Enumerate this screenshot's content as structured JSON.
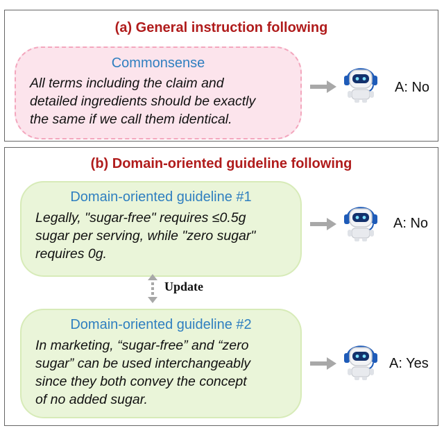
{
  "panel_a": {
    "title": "(a) General instruction following",
    "bubble": {
      "title": "Commonsense",
      "lines": [
        "All terms including the claim and",
        "detailed ingredients should be exactly",
        "the same if we call them identical."
      ]
    },
    "answer": "A: No"
  },
  "panel_b": {
    "title": "(b) Domain-oriented guideline following",
    "guideline_1": {
      "title": "Domain-oriented guideline #1",
      "lines": [
        "Legally, \"sugar-free\" requires ≤0.5g",
        "sugar per serving, while \"zero sugar\"",
        "requires 0g."
      ],
      "answer": "A: No"
    },
    "update_label": "Update",
    "guideline_2": {
      "title": "Domain-oriented guideline #2",
      "lines": [
        "In marketing, “sugar-free” and “zero",
        "sugar” can be used interchangeably",
        "since they both convey the concept",
        "of no added sugar."
      ],
      "answer": "A: Yes"
    }
  },
  "colors": {
    "title_red": "#b01c1c",
    "bubble_title_blue": "#2f7fc0",
    "pink_fill": "#fce4ec",
    "pink_border": "#f3a6bd",
    "green_fill": "#eaf5d9",
    "green_border": "#d7ebb8",
    "arrow_gray": "#a8a8a8",
    "robot_blue": "#1e5bb8"
  },
  "icons": {
    "robot": "robot-headset-icon",
    "arrow": "arrow-right-icon",
    "update": "double-arrow-vertical-icon"
  }
}
